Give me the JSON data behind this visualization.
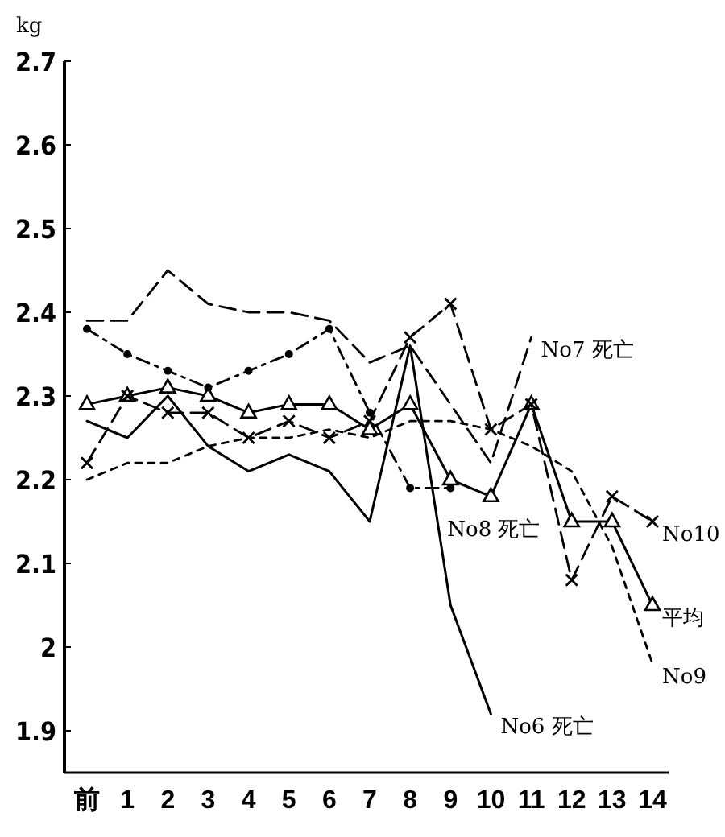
{
  "chart_data": {
    "type": "line",
    "ylabel": "kg",
    "categories": [
      "前",
      "1",
      "2",
      "3",
      "4",
      "5",
      "6",
      "7",
      "8",
      "9",
      "10",
      "11",
      "12",
      "13",
      "14"
    ],
    "ylim": [
      1.85,
      2.7
    ],
    "yticks": [
      1.9,
      2.0,
      2.1,
      2.2,
      2.3,
      2.4,
      2.5,
      2.6,
      2.7
    ],
    "grid": false,
    "series": [
      {
        "name": "平均",
        "color": "#000000",
        "marker": "triangle",
        "line_style": "solid",
        "values": [
          2.29,
          2.3,
          2.31,
          2.3,
          2.28,
          2.29,
          2.29,
          2.26,
          2.29,
          2.2,
          2.18,
          2.29,
          2.15,
          2.15,
          2.05
        ]
      },
      {
        "name": "No6 死亡",
        "color": "#000000",
        "marker": "none",
        "line_style": "solid",
        "values": [
          2.27,
          2.25,
          2.3,
          2.24,
          2.21,
          2.23,
          2.21,
          2.15,
          2.36,
          2.05,
          1.92,
          null,
          null,
          null,
          null
        ]
      },
      {
        "name": "No7 死亡",
        "color": "#000000",
        "marker": "none",
        "line_style": "dashed",
        "values": [
          2.39,
          2.39,
          2.45,
          2.41,
          2.4,
          2.4,
          2.39,
          2.34,
          2.36,
          2.29,
          2.22,
          2.37,
          null,
          null,
          null
        ]
      },
      {
        "name": "No8 死亡",
        "color": "#000000",
        "marker": "circle",
        "line_style": "dashdot",
        "values": [
          2.38,
          2.35,
          2.33,
          2.31,
          2.33,
          2.35,
          2.38,
          2.28,
          2.19,
          2.19,
          null,
          null,
          null,
          null,
          null
        ]
      },
      {
        "name": "No9",
        "color": "#000000",
        "marker": "none",
        "line_style": "dotted",
        "values": [
          2.2,
          2.22,
          2.22,
          2.24,
          2.25,
          2.25,
          2.26,
          2.25,
          2.27,
          2.27,
          2.26,
          2.24,
          2.21,
          2.12,
          1.98
        ]
      },
      {
        "name": "No10",
        "color": "#000000",
        "marker": "cross",
        "line_style": "dashed",
        "values": [
          2.22,
          2.3,
          2.28,
          2.28,
          2.25,
          2.27,
          2.25,
          2.27,
          2.37,
          2.41,
          2.26,
          2.29,
          2.08,
          2.18,
          2.15
        ]
      }
    ]
  }
}
